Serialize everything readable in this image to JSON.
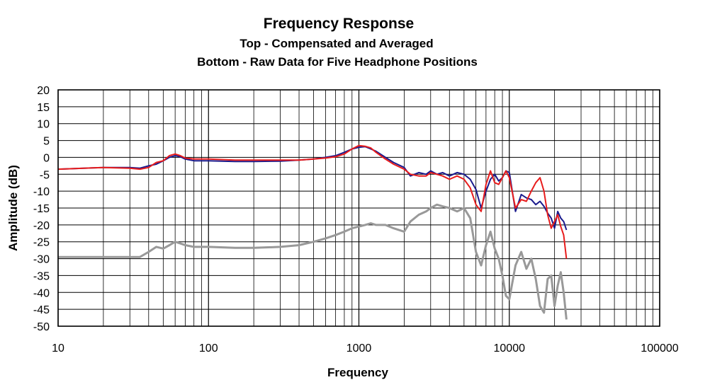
{
  "chart_data": {
    "type": "line",
    "title": "Frequency Response",
    "subtitle_lines": [
      "Top -  Compensated and Averaged",
      "Bottom - Raw Data for Five Headphone Positions"
    ],
    "xlabel": "Frequency",
    "ylabel": "Amplitude (dB)",
    "x_scale": "log",
    "xlim": [
      10,
      100000
    ],
    "ylim": [
      -50,
      20
    ],
    "x_ticks": [
      10,
      100,
      1000,
      10000,
      100000
    ],
    "y_ticks": [
      20,
      15,
      10,
      5,
      0,
      -5,
      -10,
      -15,
      -20,
      -25,
      -30,
      -35,
      -40,
      -45,
      -50
    ],
    "grid": true,
    "legend": "none",
    "series": [
      {
        "color": "#1a1a8c",
        "x": [
          10,
          20,
          30,
          35,
          40,
          45,
          50,
          55,
          60,
          65,
          70,
          80,
          100,
          150,
          200,
          300,
          400,
          500,
          600,
          700,
          800,
          900,
          1000,
          1100,
          1200,
          1300,
          1500,
          1700,
          2000,
          2200,
          2500,
          2800,
          3000,
          3300,
          3600,
          4000,
          4500,
          5000,
          5500,
          6000,
          6500,
          7000,
          7500,
          8000,
          8500,
          9000,
          9500,
          10000,
          11000,
          12000,
          13000,
          14000,
          15000,
          16000,
          17000,
          18000,
          19000,
          20000,
          21000,
          22000,
          23000,
          24000
        ],
        "y": [
          -3.5,
          -3,
          -3,
          -3.2,
          -2.5,
          -2,
          -1,
          0,
          0.5,
          0.2,
          -0.5,
          -1,
          -1,
          -1.2,
          -1.2,
          -1.1,
          -0.8,
          -0.5,
          0,
          0.5,
          1.5,
          2.5,
          3,
          3.2,
          2.5,
          1.8,
          0,
          -1.5,
          -3,
          -5.5,
          -4.5,
          -5,
          -4,
          -5,
          -4.5,
          -5.5,
          -4.5,
          -5,
          -6.5,
          -9.5,
          -15,
          -10,
          -6.5,
          -5,
          -7,
          -6,
          -4,
          -4.5,
          -16,
          -11,
          -12,
          -12.5,
          -14,
          -13,
          -14.5,
          -16.5,
          -18,
          -21,
          -16,
          -18,
          -19,
          -21.5
        ]
      },
      {
        "color": "#e81c1c",
        "x": [
          10,
          20,
          30,
          35,
          40,
          45,
          50,
          55,
          60,
          65,
          70,
          80,
          100,
          150,
          200,
          300,
          400,
          500,
          600,
          700,
          800,
          900,
          1000,
          1100,
          1200,
          1300,
          1500,
          1700,
          2000,
          2200,
          2500,
          2800,
          3000,
          3300,
          3600,
          4000,
          4500,
          5000,
          5500,
          6000,
          6500,
          7000,
          7500,
          8000,
          8500,
          9000,
          9500,
          10000,
          11000,
          12000,
          13000,
          14000,
          15000,
          16000,
          17000,
          18000,
          19000,
          20000,
          21000,
          22000,
          23000,
          24000
        ],
        "y": [
          -3.5,
          -3,
          -3.2,
          -3.5,
          -3,
          -1.5,
          -1,
          0.5,
          1,
          0.5,
          -0.2,
          -0.5,
          -0.5,
          -0.8,
          -0.8,
          -0.8,
          -0.8,
          -0.5,
          -0.2,
          0.2,
          1,
          2.5,
          3.5,
          3.3,
          2.8,
          1.5,
          -0.5,
          -2,
          -3.5,
          -5,
          -5.5,
          -5.5,
          -4.5,
          -5,
          -5.5,
          -6.5,
          -5.5,
          -6.5,
          -9,
          -14,
          -16,
          -8,
          -4,
          -7.5,
          -8,
          -6,
          -4,
          -6,
          -15,
          -12.5,
          -13,
          -10,
          -7.5,
          -6,
          -10,
          -17,
          -21,
          -19,
          -17,
          -20.5,
          -23,
          -30
        ]
      },
      {
        "color": "#999999",
        "x": [
          10,
          20,
          30,
          35,
          40,
          45,
          50,
          55,
          60,
          65,
          70,
          80,
          100,
          150,
          200,
          300,
          400,
          500,
          600,
          700,
          800,
          900,
          1000,
          1100,
          1200,
          1300,
          1500,
          1700,
          2000,
          2200,
          2500,
          2800,
          3000,
          3300,
          3600,
          4000,
          4500,
          5000,
          5500,
          6000,
          6500,
          7000,
          7500,
          8000,
          8500,
          9000,
          9500,
          10000,
          11000,
          12000,
          13000,
          14000,
          15000,
          16000,
          17000,
          18000,
          19000,
          20000,
          21000,
          22000,
          23000,
          24000
        ],
        "y": [
          -29.5,
          -29.5,
          -29.5,
          -29.5,
          -28,
          -26.5,
          -27,
          -26,
          -25,
          -25.5,
          -26,
          -26.5,
          -26.5,
          -26.8,
          -26.8,
          -26.5,
          -26,
          -25,
          -24,
          -23,
          -22,
          -21,
          -20.5,
          -20,
          -19.5,
          -20,
          -20,
          -21,
          -22,
          -19,
          -17,
          -16,
          -15,
          -14,
          -14.5,
          -15,
          -16,
          -15,
          -18,
          -28,
          -32,
          -26,
          -22,
          -27,
          -30,
          -35,
          -41,
          -42,
          -32,
          -28,
          -33,
          -30,
          -36,
          -44,
          -46,
          -36,
          -35,
          -44,
          -38,
          -34,
          -40,
          -48
        ]
      }
    ]
  }
}
